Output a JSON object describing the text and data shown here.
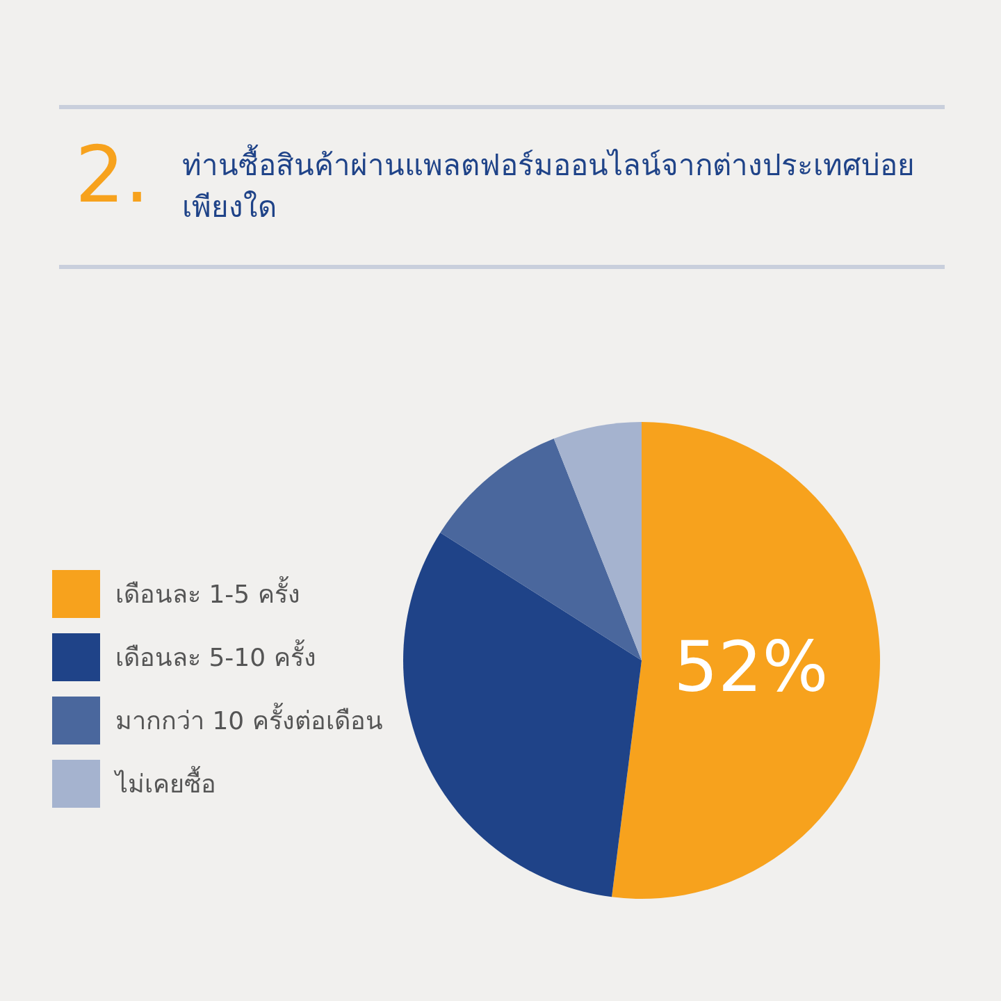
{
  "chart_data": {
    "type": "pie",
    "title": "ท่านซื้อสินค้าผ่านแพลตฟอร์มออนไลน์จากต่างประเทศบ่อยเพียงใด",
    "annotations": [
      "2."
    ],
    "categories": [
      "เดือนละ 1-5 ครั้ง",
      "เดือนละ 5-10 ครั้ง",
      "มากกว่า 10 ครั้งต่อเดือน",
      "ไม่เคยซื้อ"
    ],
    "values": [
      52,
      32,
      10,
      6
    ],
    "colors": [
      "#f7a21d",
      "#1f4388",
      "#4a679d",
      "#a5b3cf"
    ],
    "value_labels": [
      "52%",
      null,
      null,
      null
    ],
    "legend": "left"
  }
}
